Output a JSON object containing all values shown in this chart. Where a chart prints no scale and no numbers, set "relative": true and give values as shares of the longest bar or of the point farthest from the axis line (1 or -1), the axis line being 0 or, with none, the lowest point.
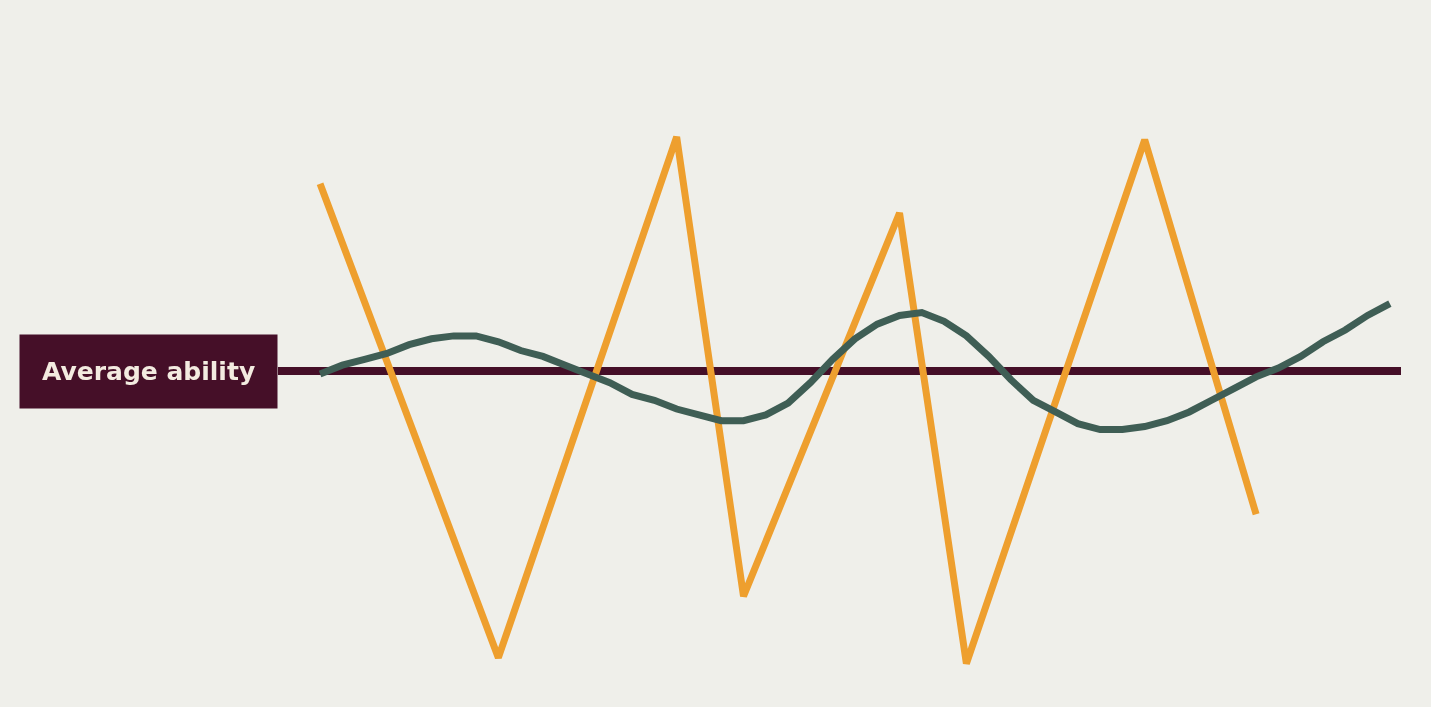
{
  "chart_data": {
    "type": "line",
    "relative": true,
    "grid": false,
    "legend": false,
    "categories": [
      null,
      null,
      null,
      null,
      null,
      null,
      null,
      null,
      null,
      null,
      null,
      null,
      null,
      null,
      null,
      null,
      null,
      null,
      null,
      null,
      null,
      null,
      null,
      null,
      null,
      null,
      null,
      null,
      null,
      null,
      null,
      null,
      null,
      null,
      null,
      null,
      null,
      null,
      null,
      null,
      null,
      null,
      null,
      null,
      null,
      null,
      null,
      null,
      null
    ],
    "series": [
      {
        "color": "#ee9f2e",
        "values": [
          0.64,
          null,
          null,
          null,
          null,
          null,
          null,
          null,
          -0.98,
          null,
          null,
          null,
          null,
          null,
          null,
          null,
          0.8,
          null,
          null,
          -0.77,
          null,
          null,
          null,
          null,
          null,
          null,
          0.54,
          null,
          null,
          -1,
          null,
          null,
          null,
          null,
          null,
          null,
          null,
          0.79,
          null,
          null,
          null,
          null,
          -0.49,
          null,
          null,
          null,
          null,
          null,
          null
        ]
      },
      {
        "color": "#3f5e55",
        "values": [
          -0.01,
          0.02,
          0.04,
          0.06,
          0.09,
          0.11,
          0.12,
          0.12,
          0.1,
          0.07,
          0.05,
          0.02,
          -0.01,
          -0.04,
          -0.08,
          -0.1,
          -0.13,
          -0.15,
          -0.17,
          -0.17,
          -0.15,
          -0.11,
          -0.04,
          0.04,
          0.11,
          0.16,
          0.19,
          0.2,
          0.17,
          0.12,
          0.05,
          -0.03,
          -0.1,
          -0.14,
          -0.18,
          -0.2,
          -0.2,
          -0.19,
          -0.17,
          -0.14,
          -0.1,
          -0.06,
          -0.02,
          0.01,
          0.05,
          0.1,
          0.14,
          0.19,
          0.23
        ]
      }
    ],
    "ref_lines": [
      {
        "axis": "y",
        "value": 0,
        "label": "Average ability",
        "color": "#450f28"
      }
    ]
  }
}
